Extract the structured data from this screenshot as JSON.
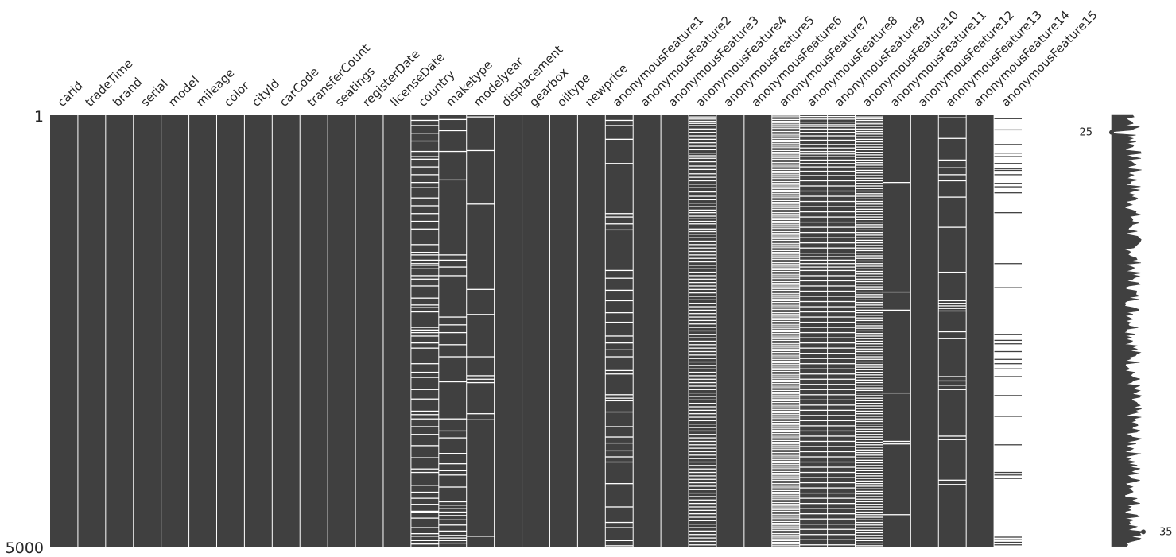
{
  "chart_data": {
    "type": "heatmap",
    "title": "",
    "xlabel": "",
    "ylabel": "",
    "rows": {
      "first": 1,
      "last": 5000
    },
    "filled_color": "#404040",
    "missing_color": "#ffffff",
    "columns": [
      {
        "name": "carid",
        "missing_at": []
      },
      {
        "name": "tradeTime",
        "missing_at": []
      },
      {
        "name": "brand",
        "missing_at": []
      },
      {
        "name": "serial",
        "missing_at": []
      },
      {
        "name": "model",
        "missing_at": []
      },
      {
        "name": "mileage",
        "missing_at": []
      },
      {
        "name": "color",
        "missing_at": []
      },
      {
        "name": "cityId",
        "missing_at": []
      },
      {
        "name": "carCode",
        "missing_at": []
      },
      {
        "name": "transferCount",
        "missing_at": []
      },
      {
        "name": "seatings",
        "missing_at": []
      },
      {
        "name": "registerDate",
        "missing_at": []
      },
      {
        "name": "licenseDate",
        "missing_at": []
      },
      {
        "name": "country",
        "missing_at": [
          60,
          120,
          210,
          300,
          420,
          480,
          510,
          600,
          690,
          780,
          840,
          960,
          1050,
          1140,
          1230,
          1320,
          1500,
          1620,
          1590,
          1680,
          1720,
          1740,
          1780,
          1860,
          1900,
          1980,
          2120,
          2200,
          2230,
          2280,
          2460,
          2490,
          2520,
          2560,
          2640,
          2700,
          2880,
          2980,
          3040,
          3180,
          3290,
          3430,
          3470,
          3520,
          3610,
          3700,
          3830,
          3970,
          4100,
          4140,
          4290,
          4370,
          4440,
          4510,
          4590,
          4600,
          4670,
          4780,
          4850,
          4880,
          4930,
          4970
        ]
      },
      {
        "name": "maketype",
        "missing_at": [
          50,
          180,
          420,
          750,
          1620,
          1680,
          1760,
          1860,
          2340,
          2430,
          2520,
          2660,
          2800,
          3090,
          3520,
          3660,
          3740,
          3920,
          4040,
          4120,
          4170,
          4310,
          4480,
          4520,
          4560,
          4600,
          4640,
          4690,
          4750,
          4820,
          4870,
          4900,
          4930,
          4960
        ]
      },
      {
        "name": "modelyear",
        "missing_at": [
          20,
          410,
          1030,
          2020,
          2310,
          2800,
          3020,
          3060,
          3100,
          3460,
          3530,
          4880
        ]
      },
      {
        "name": "displacement",
        "missing_at": []
      },
      {
        "name": "gearbox",
        "missing_at": []
      },
      {
        "name": "oiltype",
        "missing_at": []
      },
      {
        "name": "newprice",
        "missing_at": []
      },
      {
        "name": "anonymousFeature1",
        "missing_at": [
          60,
          120,
          280,
          560,
          1140,
          1180,
          1260,
          1330,
          1800,
          1890,
          2030,
          2150,
          2290,
          2400,
          2560,
          2640,
          2720,
          2800,
          2960,
          3000,
          3240,
          3280,
          3310,
          3440,
          3610,
          3730,
          3800,
          3890,
          3960,
          4020,
          4270,
          4540,
          4720,
          4780,
          4930,
          4990
        ]
      },
      {
        "name": "anonymousFeature2",
        "missing_at": []
      },
      {
        "name": "anonymousFeature3",
        "missing_at": []
      },
      {
        "name": "anonymousFeature4",
        "missing_at": [
          20,
          45,
          70,
          95,
          120,
          160,
          200,
          240,
          280,
          320,
          360,
          400,
          440,
          470,
          500,
          540,
          590,
          630,
          680,
          720,
          760,
          800,
          840,
          890,
          940,
          980,
          1020,
          1060,
          1100,
          1130,
          1170,
          1200,
          1230,
          1260,
          1320,
          1350,
          1380,
          1420,
          1460,
          1500,
          1540,
          1580,
          1620,
          1660,
          1700,
          1740,
          1780,
          1820,
          1860,
          1900,
          1940,
          1980,
          2020,
          2060,
          2100,
          2140,
          2180,
          2220,
          2260,
          2300,
          2340,
          2380,
          2420,
          2460,
          2500,
          2540,
          2580,
          2620,
          2660,
          2700,
          2740,
          2780,
          2820,
          2860,
          2900,
          2940,
          2980,
          3020,
          3060,
          3100,
          3140,
          3180,
          3220,
          3260,
          3300,
          3340,
          3380,
          3420,
          3460,
          3500,
          3540,
          3580,
          3620,
          3660,
          3700,
          3740,
          3780,
          3820,
          3860,
          3900,
          3940,
          3980,
          4020,
          4060,
          4100,
          4140,
          4180,
          4220,
          4260,
          4300,
          4340,
          4380,
          4420,
          4460,
          4500,
          4540,
          4580,
          4620,
          4660,
          4700,
          4740,
          4780,
          4820,
          4860,
          4900,
          4940,
          4980
        ]
      },
      {
        "name": "anonymousFeature5",
        "missing_at": []
      },
      {
        "name": "anonymousFeature6",
        "missing_at": []
      },
      {
        "name": "anonymousFeature7",
        "missing_at": [
          10,
          30,
          50,
          70,
          90,
          110,
          130,
          150,
          170,
          190,
          210,
          230,
          250,
          270,
          290,
          310,
          330,
          350,
          370,
          390,
          410,
          430,
          450,
          470,
          490,
          510,
          530,
          550,
          570,
          590,
          610,
          630,
          650,
          670,
          690,
          710,
          730,
          750,
          770,
          790,
          810,
          830,
          850,
          870,
          890,
          910,
          930,
          950,
          970,
          990,
          1010,
          1030,
          1050,
          1070,
          1090,
          1110,
          1130,
          1150,
          1170,
          1190,
          1210,
          1230,
          1250,
          1270,
          1290,
          1310,
          1330,
          1350,
          1370,
          1390,
          1410,
          1430,
          1450,
          1470,
          1490,
          1510,
          1530,
          1550,
          1570,
          1590,
          1610,
          1630,
          1650,
          1670,
          1690,
          1710,
          1730,
          1750,
          1770,
          1790,
          1810,
          1830,
          1850,
          1870,
          1890,
          1910,
          1930,
          1950,
          1970,
          1990,
          2010,
          2030,
          2050,
          2070,
          2090,
          2110,
          2130,
          2150,
          2170,
          2190,
          2210,
          2230,
          2250,
          2270,
          2290,
          2310,
          2330,
          2350,
          2370,
          2390,
          2410,
          2430,
          2450,
          2470,
          2490,
          2510,
          2530,
          2550,
          2570,
          2590,
          2610,
          2630,
          2650,
          2670,
          2690,
          2710,
          2730,
          2750,
          2770,
          2790,
          2810,
          2830,
          2850,
          2870,
          2890,
          2910,
          2930,
          2950,
          2970,
          2990,
          3010,
          3030,
          3050,
          3070,
          3090,
          3110,
          3130,
          3150,
          3170,
          3190,
          3210,
          3230,
          3250,
          3270,
          3290,
          3310,
          3330,
          3350,
          3370,
          3390,
          3410,
          3430,
          3450,
          3470,
          3490,
          3510,
          3530,
          3550,
          3570,
          3590,
          3610,
          3630,
          3650,
          3670,
          3690,
          3710,
          3730,
          3750,
          3770,
          3790,
          3810,
          3830,
          3850,
          3870,
          3890,
          3910,
          3930,
          3950,
          3970,
          3990,
          4010,
          4030,
          4050,
          4070,
          4090,
          4110,
          4130,
          4150,
          4170,
          4190,
          4210,
          4230,
          4250,
          4270,
          4290,
          4310,
          4330,
          4350,
          4370,
          4390,
          4410,
          4430,
          4450,
          4470,
          4490,
          4510,
          4530,
          4550,
          4570,
          4590,
          4610,
          4630,
          4650,
          4670,
          4690,
          4710,
          4730,
          4750,
          4770,
          4790,
          4810,
          4830,
          4850,
          4870,
          4890,
          4910,
          4930,
          4950,
          4970,
          4990
        ]
      },
      {
        "name": "anonymousFeature8",
        "missing_at": [
          15,
          45,
          80,
          110,
          130,
          160,
          200,
          240,
          290,
          340,
          380,
          420,
          450,
          480,
          520,
          560,
          600,
          650,
          700,
          760,
          820,
          880,
          940,
          1000,
          1060,
          1120,
          1180,
          1240,
          1300,
          1360,
          1420,
          1480,
          1540,
          1600,
          1640,
          1680,
          1720,
          1760,
          1800,
          1860,
          1920,
          1980,
          2040,
          2100,
          2160,
          2220,
          2280,
          2340,
          2400,
          2460,
          2520,
          2580,
          2640,
          2700,
          2760,
          2820,
          2880,
          2940,
          3000,
          3060,
          3120,
          3180,
          3240,
          3300,
          3360,
          3420,
          3480,
          3540,
          3600,
          3660,
          3720,
          3780,
          3840,
          3900,
          3960,
          4020,
          4080,
          4140,
          4200,
          4260,
          4320,
          4380,
          4440,
          4500,
          4560,
          4620,
          4680,
          4740,
          4800,
          4860,
          4920,
          4980
        ]
      },
      {
        "name": "anonymousFeature9",
        "missing_at": [
          15,
          45,
          80,
          110,
          130,
          160,
          200,
          240,
          290,
          340,
          380,
          420,
          450,
          480,
          520,
          560,
          600,
          650,
          700,
          760,
          820,
          880,
          940,
          1000,
          1060,
          1120,
          1180,
          1240,
          1300,
          1360,
          1420,
          1480,
          1540,
          1600,
          1640,
          1680,
          1720,
          1760,
          1800,
          1860,
          1920,
          1980,
          2040,
          2100,
          2160,
          2220,
          2280,
          2340,
          2400,
          2460,
          2520,
          2580,
          2640,
          2700,
          2760,
          2820,
          2880,
          2940,
          3000,
          3060,
          3120,
          3180,
          3240,
          3300,
          3360,
          3420,
          3480,
          3540,
          3600,
          3660,
          3720,
          3780,
          3840,
          3900,
          3960,
          4020,
          4080,
          4140,
          4200,
          4260,
          4320,
          4380,
          4440,
          4500,
          4560,
          4620,
          4680,
          4740,
          4800,
          4860,
          4920,
          4980
        ]
      },
      {
        "name": "anonymousFeature10",
        "missing_at": [
          20,
          40,
          60,
          80,
          100,
          130,
          160,
          190,
          220,
          250,
          280,
          310,
          340,
          370,
          400,
          430,
          460,
          490,
          520,
          550,
          580,
          610,
          640,
          670,
          700,
          730,
          760,
          790,
          820,
          850,
          880,
          910,
          940,
          970,
          1000,
          1030,
          1060,
          1090,
          1120,
          1150,
          1180,
          1210,
          1240,
          1270,
          1300,
          1330,
          1360,
          1390,
          1420,
          1450,
          1480,
          1510,
          1540,
          1570,
          1600,
          1630,
          1660,
          1690,
          1720,
          1750,
          1780,
          1810,
          1840,
          1870,
          1900,
          1930,
          1960,
          1990,
          2020,
          2050,
          2080,
          2110,
          2140,
          2170,
          2200,
          2230,
          2260,
          2290,
          2320,
          2350,
          2380,
          2410,
          2440,
          2470,
          2500,
          2530,
          2560,
          2590,
          2620,
          2650,
          2680,
          2710,
          2740,
          2770,
          2800,
          2830,
          2860,
          2890,
          2920,
          2950,
          2980,
          3010,
          3040,
          3070,
          3100,
          3130,
          3160,
          3190,
          3220,
          3250,
          3280,
          3310,
          3340,
          3370,
          3400,
          3430,
          3460,
          3490,
          3520,
          3550,
          3580,
          3610,
          3640,
          3670,
          3700,
          3730,
          3760,
          3790,
          3820,
          3850,
          3880,
          3910,
          3940,
          3970,
          4000,
          4030,
          4060,
          4090,
          4120,
          4150,
          4180,
          4210,
          4240,
          4270,
          4300,
          4330,
          4360,
          4390,
          4420,
          4450,
          4480,
          4510,
          4540,
          4570,
          4600,
          4630,
          4660,
          4690,
          4720,
          4750,
          4780,
          4810,
          4840,
          4870,
          4900,
          4930,
          4960,
          4990
        ]
      },
      {
        "name": "anonymousFeature11",
        "missing_at": [
          780,
          2050,
          2260,
          3220,
          3780,
          3810,
          4630
        ]
      },
      {
        "name": "anonymousFeature12",
        "missing_at": []
      },
      {
        "name": "anonymousFeature13",
        "missing_at": [
          30,
          270,
          520,
          610,
          690,
          760,
          950,
          1300,
          1820,
          2150,
          2180,
          2210,
          2240,
          2270,
          2510,
          2590,
          3030,
          3080,
          3130,
          3180,
          3720,
          3760,
          4230,
          4280
        ]
      },
      {
        "name": "anonymousFeature14",
        "missing_at": []
      },
      {
        "name": "anonymousFeature15",
        "present_at": [
          40,
          170,
          340,
          440,
          480,
          560,
          620,
          640,
          690,
          790,
          830,
          900,
          1130,
          1720,
          2000,
          2540,
          2610,
          2650,
          2740,
          2830,
          2880,
          2940,
          3030,
          3250,
          3490,
          3820,
          4140,
          4170,
          4210,
          4890,
          4920,
          4950,
          4980
        ]
      }
    ],
    "sparkline": {
      "min_label": "25",
      "max_label": "35",
      "min_row": 200,
      "max_row": 4830,
      "range": [
        25,
        36
      ]
    }
  }
}
